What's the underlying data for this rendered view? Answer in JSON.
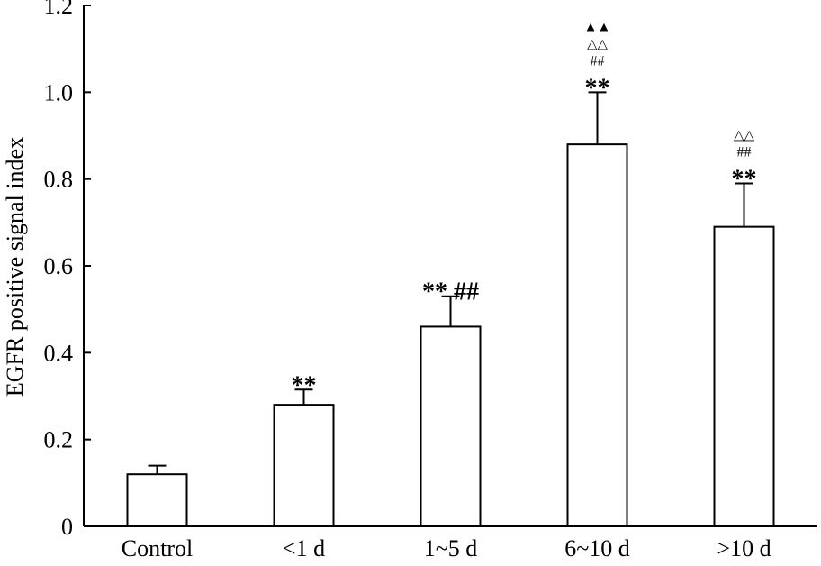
{
  "chart_data": {
    "type": "bar",
    "title": "",
    "xlabel": "",
    "ylabel": "EGFR positive signal index",
    "ylim": [
      0,
      1.2
    ],
    "yticks": [
      0,
      0.2,
      0.4,
      0.6,
      0.8,
      1.0,
      1.2
    ],
    "ytick_labels": [
      "0",
      "0.2",
      "0.4",
      "0.6",
      "0.8",
      "1.0",
      "1.2"
    ],
    "grid": false,
    "categories": [
      "Control",
      "<1 d",
      "1~5 d",
      "6~10 d",
      ">10 d"
    ],
    "values": [
      0.12,
      0.28,
      0.46,
      0.88,
      0.69
    ],
    "error": [
      0.02,
      0.035,
      0.07,
      0.12,
      0.1
    ],
    "annotations": [
      [],
      [
        "**"
      ],
      [
        "** ##"
      ],
      [
        "**",
        "##",
        "△△",
        "▲▲"
      ],
      [
        "**",
        "##",
        "△△"
      ]
    ],
    "colors": {
      "bar_fill": "#ffffff",
      "bar_stroke": "#000000",
      "axis": "#000000"
    }
  }
}
